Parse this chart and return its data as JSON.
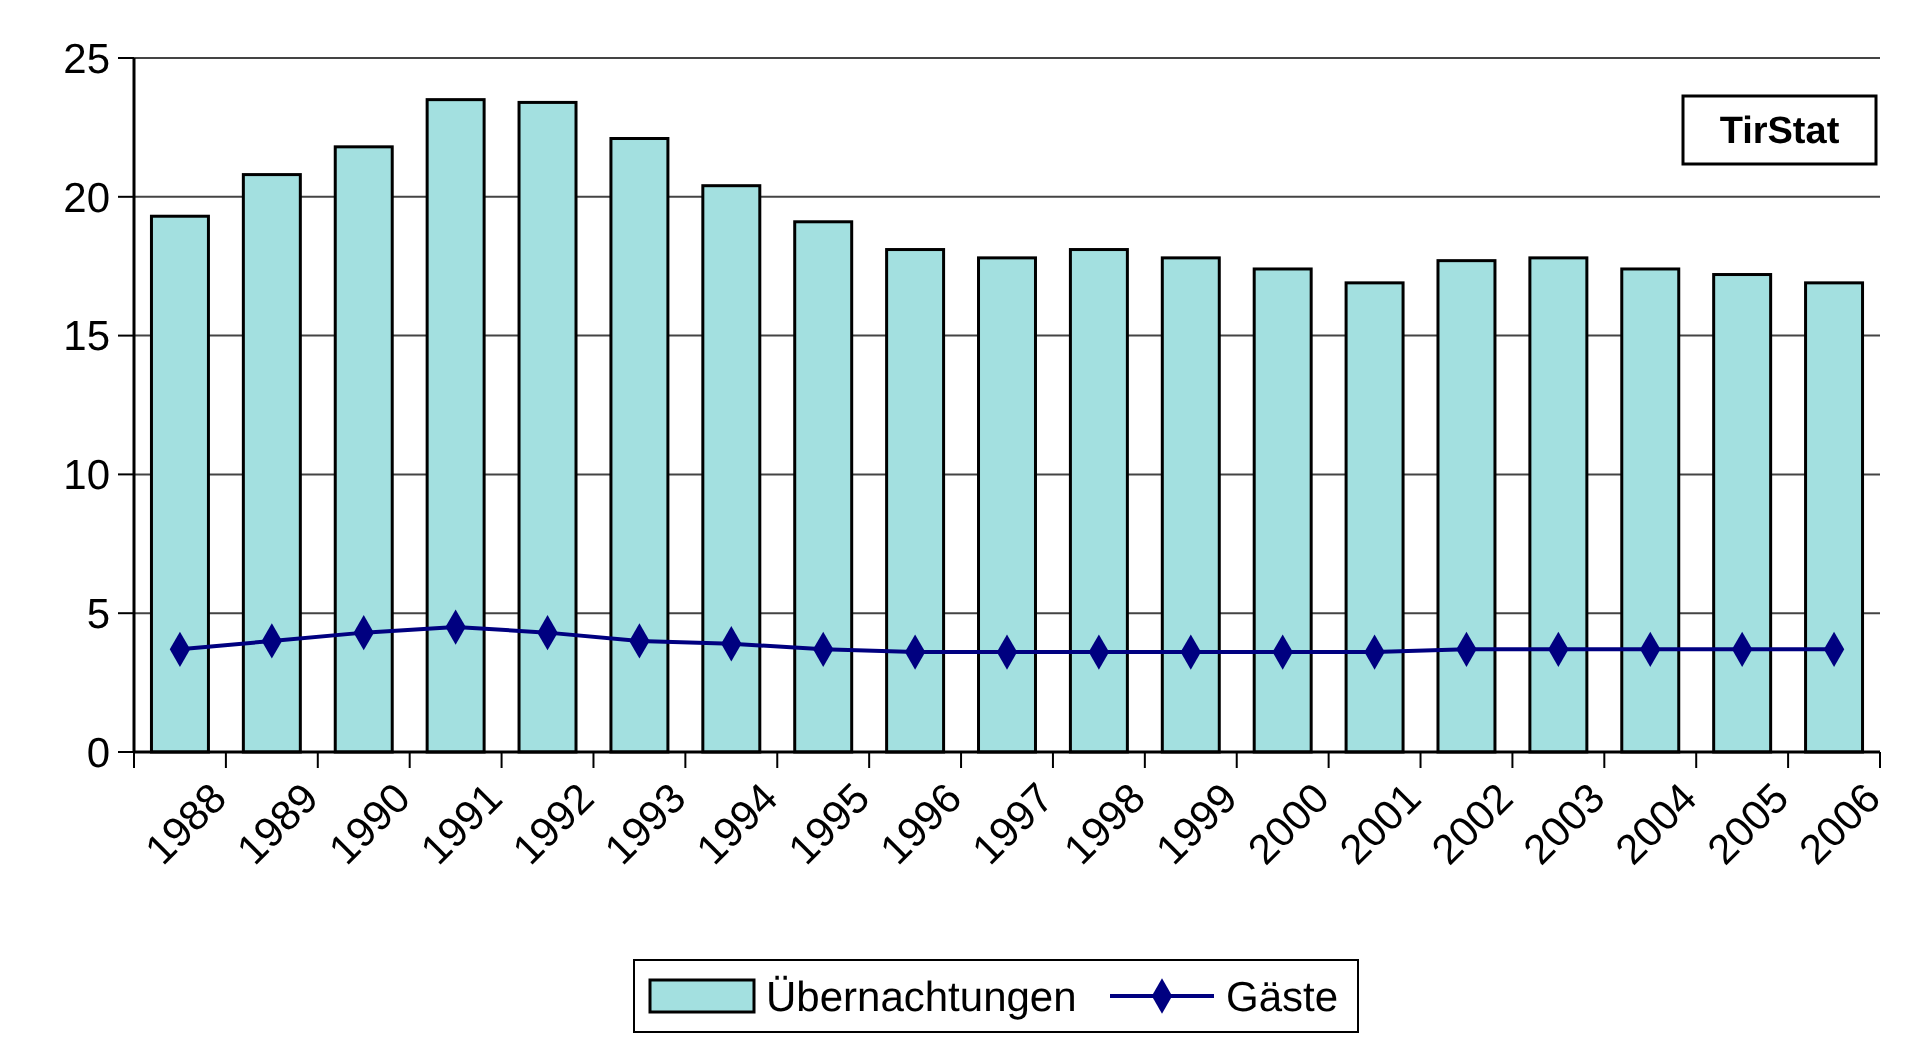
{
  "chart_data": {
    "type": "bar",
    "categories": [
      "1988",
      "1989",
      "1990",
      "1991",
      "1992",
      "1993",
      "1994",
      "1995",
      "1996",
      "1997",
      "1998",
      "1999",
      "2000",
      "2001",
      "2002",
      "2003",
      "2004",
      "2005",
      "2006"
    ],
    "series": [
      {
        "name": "Übernachtungen",
        "color": "#a3e0e0",
        "values": [
          19.3,
          20.8,
          21.8,
          23.5,
          23.4,
          22.1,
          20.4,
          19.1,
          18.1,
          17.8,
          18.1,
          17.8,
          17.4,
          16.9,
          17.7,
          17.8,
          17.4,
          17.2,
          16.9
        ]
      },
      {
        "name": "Gäste",
        "type": "line",
        "color": "#000080",
        "marker": "diamond",
        "values": [
          3.7,
          4.0,
          4.3,
          4.5,
          4.3,
          4.0,
          3.9,
          3.7,
          3.6,
          3.6,
          3.6,
          3.6,
          3.6,
          3.6,
          3.7,
          3.7,
          3.7,
          3.7,
          3.7
        ]
      }
    ],
    "ylim": [
      0,
      25
    ],
    "yticks": [
      0,
      5,
      10,
      15,
      20,
      25
    ],
    "grid": "y",
    "legend": "bottom",
    "annotations": [
      "TirStat"
    ]
  }
}
